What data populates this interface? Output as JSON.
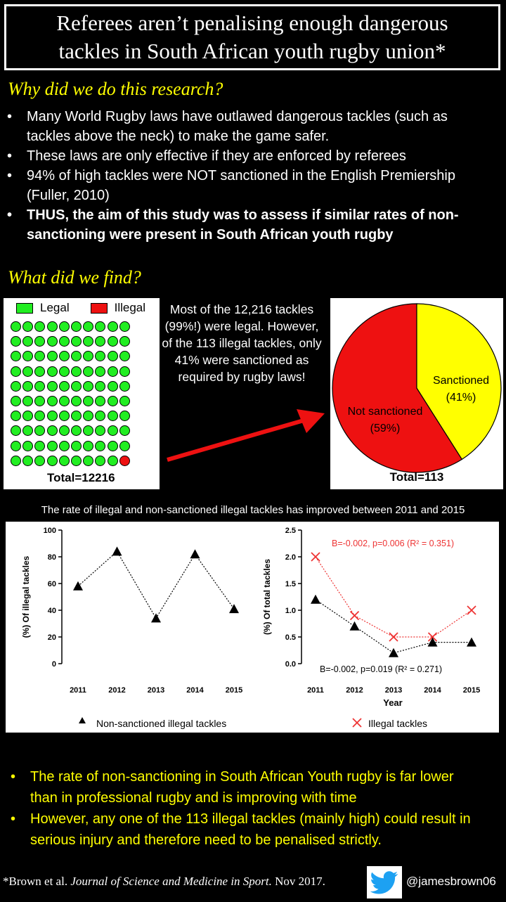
{
  "title": "Referees aren’t penalising enough dangerous tackles in South African youth rugby union*",
  "section1": {
    "heading": "Why did we do this research?",
    "bullets": [
      "Many World Rugby laws have outlawed dangerous tackles (such as tackles above the neck) to make the game safer.",
      "These laws are only effective if they are enforced by referees",
      "94% of high tackles were NOT sanctioned in the English Premiership (Fuller, 2010)",
      "THUS, the aim of this study was to assess if similar rates of non-sanctioning were present in South African youth rugby"
    ]
  },
  "section2": {
    "heading": "What did we find?",
    "waffle": {
      "legend_legal": "Legal",
      "legend_illegal": "Illegal",
      "total_label": "Total=12216",
      "color_legal": "#22ee22",
      "color_illegal": "#ee1111"
    },
    "middle_text": "Most of the 12,216 tackles (99%!) were legal. However, of the 113 illegal tackles, only 41% were sanctioned as required by rugby laws!",
    "pie": {
      "total_label": "Total=113",
      "sanctioned_label": "Sanctioned",
      "sanctioned_pct": "(41%)",
      "not_sanctioned_label": "Not sanctioned",
      "not_sanctioned_pct": "(59%)"
    }
  },
  "subheading": "The rate of illegal and non-sanctioned illegal tackles has improved between 2011 and 2015",
  "chart_data": [
    {
      "type": "waffle",
      "categories": [
        "Legal",
        "Illegal"
      ],
      "values": [
        99,
        1
      ],
      "title": "Total=12216"
    },
    {
      "type": "pie",
      "categories": [
        "Sanctioned",
        "Not sanctioned"
      ],
      "values": [
        41,
        59
      ],
      "labels": [
        "(41%)",
        "(59%)"
      ],
      "colors": [
        "#ffff00",
        "#ee1111"
      ],
      "title": "Total=113"
    },
    {
      "type": "line",
      "x": [
        "2011",
        "2012",
        "2013",
        "2014",
        "2015"
      ],
      "series": [
        {
          "name": "Non-sanctioned illegal tackles",
          "values": [
            58,
            84,
            34,
            82,
            41
          ],
          "marker": "triangle",
          "color": "#000000"
        }
      ],
      "ylabel": "(%) Of illegal tackles",
      "xlabel": "",
      "ylim": [
        0,
        100
      ],
      "yticks": [
        "0",
        "20",
        "40",
        "60",
        "80",
        "100"
      ]
    },
    {
      "type": "line",
      "x": [
        "2011",
        "2012",
        "2013",
        "2014",
        "2015"
      ],
      "series": [
        {
          "name": "Illegal tackles",
          "values": [
            2.0,
            0.9,
            0.5,
            0.5,
            1.0
          ],
          "marker": "x",
          "color": "#ee3333"
        },
        {
          "name": "Non-sanctioned illegal tackles",
          "values": [
            1.2,
            0.7,
            0.2,
            0.4,
            0.4
          ],
          "marker": "triangle",
          "color": "#000000"
        }
      ],
      "ylabel": "(%) Of total tackles",
      "xlabel": "Year",
      "ylim": [
        0,
        2.5
      ],
      "yticks": [
        "0.0",
        "0.5",
        "1.0",
        "1.5",
        "2.0",
        "2.5"
      ],
      "annotations": [
        "B=-0.002, p=0.006 (R² = 0.351)",
        "B=-0.002, p=0.019 (R² = 0.271)"
      ]
    }
  ],
  "conclusions": [
    "The rate of non-sanctioning in South African Youth rugby is far lower than in professional rugby and is improving with time",
    "However, any one of the 113 illegal tackles (mainly high) could result in serious injury and therefore need to be penalised strictly."
  ],
  "footer": {
    "citation_prefix": "*Brown et al.",
    "journal": "Journal of Science and Medicine in Sport.",
    "date": "Nov 2017.",
    "handle": "@jamesbrown06"
  }
}
